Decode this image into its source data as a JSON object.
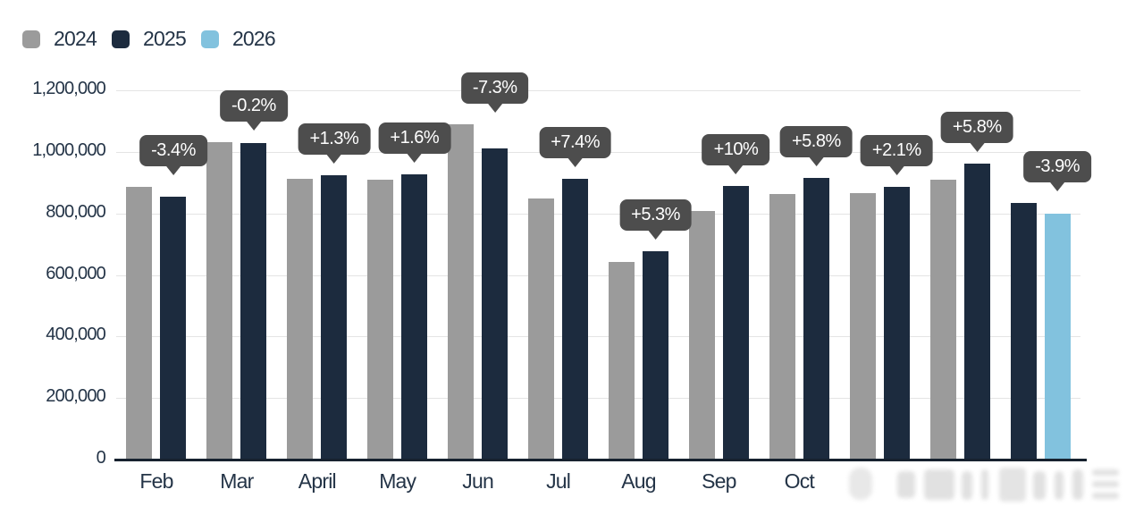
{
  "colors": {
    "background": "#ffffff",
    "grid": "#e4e4e4",
    "axis_line": "#17222f",
    "axis_text": "#243447",
    "tooltip_bg": "#4d4d4d",
    "tooltip_text": "#ffffff",
    "series_2024": "#9b9b9b",
    "series_2025": "#1c2b3e",
    "series_2026": "#82c2de"
  },
  "chart_data": {
    "type": "bar",
    "title": "",
    "legend_position": "top-left",
    "grid": true,
    "ylim": [
      0,
      1200000
    ],
    "y_tick_values": [
      0,
      200000,
      400000,
      600000,
      800000,
      1000000,
      1200000
    ],
    "y_ticks": [
      "0",
      "200,000",
      "400,000",
      "600,000",
      "800,000",
      "1,000,000",
      "1,200,000"
    ],
    "categories": [
      "Feb",
      "Mar",
      "April",
      "May",
      "Jun",
      "Jul",
      "Aug",
      "Sep",
      "Oct",
      "",
      "",
      ""
    ],
    "categories_note": "labels of the last three groups are obscured by a blurred watermark",
    "legend": [
      {
        "label": "2024",
        "color": "#9b9b9b"
      },
      {
        "label": "2025",
        "color": "#1c2b3e"
      },
      {
        "label": "2026",
        "color": "#82c2de"
      }
    ],
    "series": [
      {
        "name": "2024",
        "color": "#9b9b9b",
        "values": [
          885000,
          1032000,
          913000,
          911000,
          1090000,
          850000,
          643000,
          807000,
          864000,
          867000,
          910000,
          null
        ]
      },
      {
        "name": "2025",
        "color": "#1c2b3e",
        "values": [
          855000,
          1030000,
          925000,
          926000,
          1011000,
          913000,
          677000,
          888000,
          914000,
          885000,
          963000,
          833000
        ]
      },
      {
        "name": "2026",
        "color": "#82c2de",
        "values": [
          null,
          null,
          null,
          null,
          null,
          null,
          null,
          null,
          null,
          null,
          null,
          800000
        ]
      }
    ],
    "change_labels": [
      "-3.4%",
      "-0.2%",
      "+1.3%",
      "+1.6%",
      "-7.3%",
      "+7.4%",
      "+5.3%",
      "+10%",
      "+5.8%",
      "+2.1%",
      "+5.8%",
      "-3.9%"
    ]
  }
}
